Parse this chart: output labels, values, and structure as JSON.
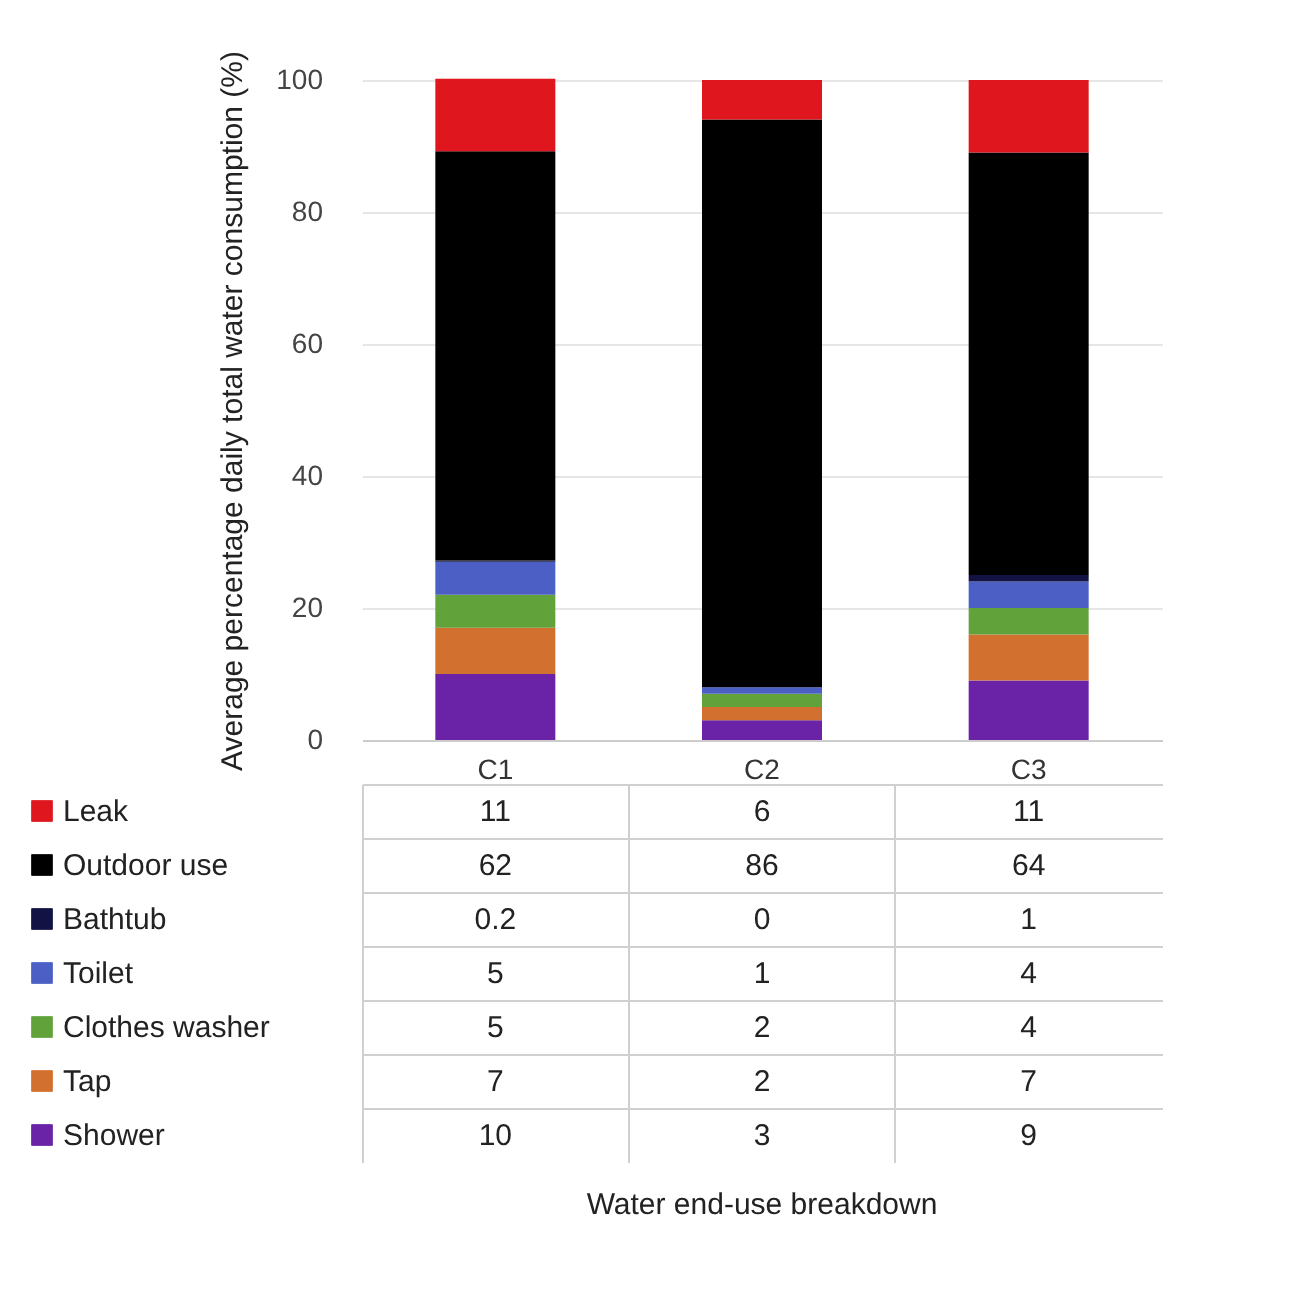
{
  "chart_data": {
    "type": "bar",
    "stacked": true,
    "ylabel": "Average percentage daily total water consumption (%)",
    "annotations": [
      "Water end-use breakdown"
    ],
    "categories": [
      "C1",
      "C2",
      "C3"
    ],
    "ylim": [
      0,
      100
    ],
    "yticks": [
      0,
      20,
      40,
      60,
      80,
      100
    ],
    "grid": "y",
    "data_labels": true,
    "legend": "bottom",
    "series": [
      {
        "name": "Shower",
        "color": "#6a22a6",
        "values": [
          10,
          3,
          9
        ]
      },
      {
        "name": "Tap",
        "color": "#d2702f",
        "values": [
          7,
          2,
          7
        ]
      },
      {
        "name": "Clothes washer",
        "color": "#62a23a",
        "values": [
          5,
          2,
          4
        ]
      },
      {
        "name": "Toilet",
        "color": "#4b5fc4",
        "values": [
          5,
          1,
          4
        ]
      },
      {
        "name": "Bathtub",
        "color": "#121245",
        "values": [
          0.2,
          0,
          1
        ]
      },
      {
        "name": "Outdoor use",
        "color": "#000000",
        "values": [
          62,
          86,
          64
        ]
      },
      {
        "name": "Leak",
        "color": "#e0161e",
        "values": [
          11,
          6,
          11
        ]
      }
    ]
  }
}
